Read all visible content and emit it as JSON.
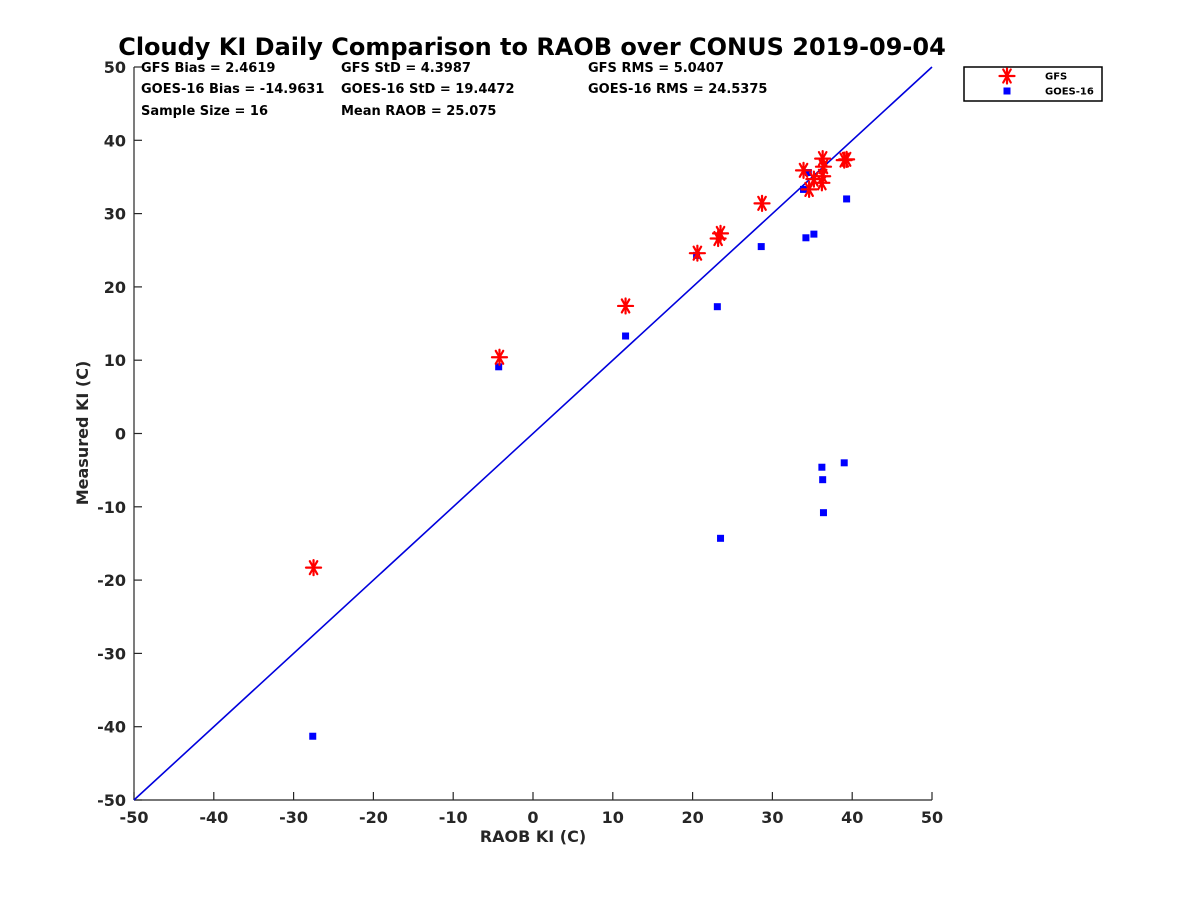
{
  "chart_data": {
    "type": "scatter",
    "title": "Cloudy KI Daily Comparison to RAOB over CONUS 2019-09-04",
    "xlabel": "RAOB KI (C)",
    "ylabel": "Measured KI (C)",
    "xlim": [
      -50,
      50
    ],
    "ylim": [
      -50,
      50
    ],
    "xticks": [
      -50,
      -40,
      -30,
      -20,
      -10,
      0,
      10,
      20,
      30,
      40,
      50
    ],
    "yticks": [
      -50,
      -40,
      -30,
      -20,
      -10,
      0,
      10,
      20,
      30,
      40,
      50
    ],
    "grid": false,
    "legend_position": "outside-top-right",
    "reference_line": {
      "x": [
        -50,
        50
      ],
      "y": [
        -50,
        50
      ],
      "color": "#0000dd"
    },
    "stats": [
      [
        "GFS Bias = 2.4619",
        "GFS StD = 4.3987",
        "GFS RMS = 5.0407"
      ],
      [
        "GOES-16 Bias = -14.9631",
        "GOES-16 StD = 19.4472",
        "GOES-16 RMS = 24.5375"
      ],
      [
        "Sample Size = 16",
        "Mean RAOB = 25.075",
        ""
      ]
    ],
    "series": [
      {
        "name": "GFS",
        "marker": "asterisk",
        "color": "#ff0000",
        "x": [
          -27.5,
          -4.2,
          11.6,
          20.6,
          23.2,
          23.5,
          28.7,
          33.9,
          34.6,
          35.2,
          36.3,
          36.2,
          36.3,
          36.4,
          39.0,
          39.3
        ],
        "y": [
          -18.3,
          10.4,
          17.4,
          24.6,
          26.6,
          27.3,
          31.4,
          35.9,
          33.3,
          34.7,
          37.5,
          34.2,
          35.1,
          36.4,
          37.3,
          37.4
        ]
      },
      {
        "name": "GOES-16",
        "marker": "square",
        "color": "#0000ff",
        "x": [
          -27.6,
          -4.3,
          11.6,
          20.5,
          23.1,
          23.5,
          28.6,
          33.9,
          34.2,
          34.5,
          35.2,
          36.2,
          36.3,
          36.4,
          39.0,
          39.3
        ],
        "y": [
          -41.3,
          9.1,
          13.3,
          24.3,
          17.3,
          -14.3,
          25.5,
          33.3,
          26.7,
          35.6,
          27.2,
          -4.6,
          -6.3,
          -10.8,
          -4.0,
          32.0
        ]
      }
    ]
  }
}
